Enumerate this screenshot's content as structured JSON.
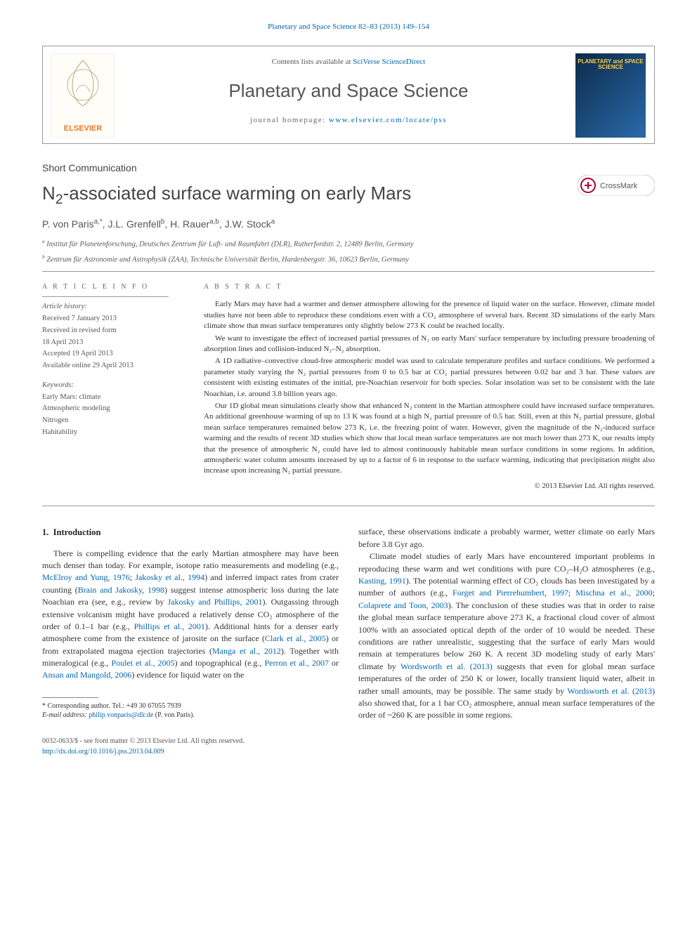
{
  "topLink": {
    "journal": "Planetary and Space Science",
    "volume": "82–83 (2013) 149–154"
  },
  "headerBox": {
    "contentsLine": "Contents lists available at",
    "contentsLink": "SciVerse ScienceDirect",
    "journalName": "Planetary and Space Science",
    "homepagePrefix": "journal homepage:",
    "homepageUrl": "www.elsevier.com/locate/pss",
    "elsevierLabel": "ELSEVIER",
    "journalLogoText": "PLANETARY and SPACE SCIENCE"
  },
  "articleType": "Short Communication",
  "title": {
    "prefix": "N",
    "sub": "2",
    "rest": "-associated surface warming on early Mars"
  },
  "crossmarkLabel": "CrossMark",
  "authors": [
    {
      "name": "P. von Paris",
      "affil": "a,*"
    },
    {
      "name": "J.L. Grenfell",
      "affil": "b"
    },
    {
      "name": "H. Rauer",
      "affil": "a,b"
    },
    {
      "name": "J.W. Stock",
      "affil": "a"
    }
  ],
  "affiliations": [
    {
      "key": "a",
      "text": "Institut für Planetenforschung, Deutsches Zentrum für Luft- und Raumfahrt (DLR), Rutherfordstr. 2, 12489 Berlin, Germany"
    },
    {
      "key": "b",
      "text": "Zentrum für Astronomie und Astrophysik (ZAA), Technische Universität Berlin, Hardenbergstr. 36, 10623 Berlin, Germany"
    }
  ],
  "articleInfo": {
    "label": "A R T I C L E   I N F O",
    "historyLabel": "Article history:",
    "history": [
      "Received 7 January 2013",
      "Received in revised form",
      "18 April 2013",
      "Accepted 19 April 2013",
      "Available online 29 April 2013"
    ],
    "keywordsLabel": "Keywords:",
    "keywords": [
      "Early Mars: climate",
      "Atmospheric modeling",
      "Nitrogen",
      "Habitability"
    ]
  },
  "abstract": {
    "label": "A B S T R A C T",
    "paragraphs": [
      "Early Mars may have had a warmer and denser atmosphere allowing for the presence of liquid water on the surface. However, climate model studies have not been able to reproduce these conditions even with a CO₂ atmosphere of several bars. Recent 3D simulations of the early Mars climate show that mean surface temperatures only slightly below 273 K could be reached locally.",
      "We want to investigate the effect of increased partial pressures of N₂ on early Mars' surface temperature by including pressure broadening of absorption lines and collision-induced N₂–N₂ absorption.",
      "A 1D radiative–convective cloud-free atmospheric model was used to calculate temperature profiles and surface conditions. We performed a parameter study varying the N₂ partial pressures from 0 to 0.5 bar at CO₂ partial pressures between 0.02 bar and 3 bar. These values are consistent with existing estimates of the initial, pre-Noachian reservoir for both species. Solar insolation was set to be consistent with the late Noachian, i.e. around 3.8 billion years ago.",
      "Our 1D global mean simulations clearly show that enhanced N₂ content in the Martian atmosphere could have increased surface temperatures. An additional greenhouse warming of up to 13 K was found at a high N₂ partial pressure of 0.5 bar. Still, even at this N₂ partial pressure, global mean surface temperatures remained below 273 K, i.e. the freezing point of water. However, given the magnitude of the N₂-induced surface warming and the results of recent 3D studies which show that local mean surface temperatures are not much lower than 273 K, our results imply that the presence of atmospheric N₂ could have led to almost continuously habitable mean surface conditions in some regions. In addition, atmospheric water column amounts increased by up to a factor of 6 in response to the surface warming, indicating that precipitation might also increase upon increasing N₂ partial pressure."
    ],
    "copyright": "© 2013 Elsevier Ltd. All rights reserved."
  },
  "body": {
    "sectionNumber": "1.",
    "sectionTitle": "Introduction",
    "paragraphs": [
      "There is compelling evidence that the early Martian atmosphere may have been much denser than today. For example, isotope ratio measurements and modeling (e.g., <a>McElroy and Yung, 1976</a>; <a>Jakosky et al., 1994</a>) and inferred impact rates from crater counting (<a>Brain and Jakosky, 1998</a>) suggest intense atmospheric loss during the late Noachian era (see, e.g., review by <a>Jakosky and Phillips, 2001</a>). Outgassing through extensive volcanism might have produced a relatively dense CO₂ atmosphere of the order of 0.1–1 bar (e.g., <a>Phillips et al., 2001</a>). Additional hints for a denser early atmosphere come from the existence of jarosite on the surface (<a>Clark et al., 2005</a>) or from extrapolated magma ejection trajectories (<a>Manga et al., 2012</a>). Together with mineralogical (e.g., <a>Poulet et al., 2005</a>) and topographical (e.g., <a>Perron et al., 2007</a> or <a>Ansan and Mangold, 2006</a>) evidence for liquid water on the",
      "surface, these observations indicate a probably warmer, wetter climate on early Mars before 3.8 Gyr ago.",
      "Climate model studies of early Mars have encountered important problems in reproducing these warm and wet conditions with pure CO₂–H₂O atmospheres (e.g., <a>Kasting, 1991</a>). The potential warming effect of CO₂ clouds has been investigated by a number of authors (e.g., <a>Forget and Pierrehumbert, 1997</a>; <a>Mischna et al., 2000</a>; <a>Colaprete and Toon, 2003</a>). The conclusion of these studies was that in order to raise the global mean surface temperature above 273 K, a fractional cloud cover of almost 100% with an associated optical depth of the order of 10 would be needed. These conditions are rather unrealistic, suggesting that the surface of early Mars would remain at temperatures below 260 K. A recent 3D modeling study of early Mars' climate by <a>Wordsworth et al. (2013)</a> suggests that even for global mean surface temperatures of the order of 250 K or lower, locally transient liquid water, albeit in rather small amounts, may be possible. The same study by <a>Wordsworth et al. (2013)</a> also showed that, for a 1 bar CO₂ atmosphere, annual mean surface temperatures of the order of ~260 K are possible in some regions."
    ]
  },
  "correspondingNote": {
    "starLabel": "* Corresponding author. Tel.: +49 30 67055 7939",
    "emailLabel": "E-mail address:",
    "email": "philip.vonparis@dlr.de",
    "emailSuffix": "(P. von Paris)."
  },
  "footer": {
    "issn": "0032-0633/$ - see front matter © 2013 Elsevier Ltd. All rights reserved.",
    "doi": "http://dx.doi.org/10.1016/j.pss.2013.04.009"
  },
  "colors": {
    "linkColor": "#0066aa",
    "textColor": "#333333",
    "headingColor": "#444444",
    "borderColor": "#999999",
    "elsevierOrange": "#ee7722",
    "journalBlue1": "#0a2a4a",
    "journalBlue2": "#2a6aaa",
    "journalGold": "#ffcc44"
  }
}
